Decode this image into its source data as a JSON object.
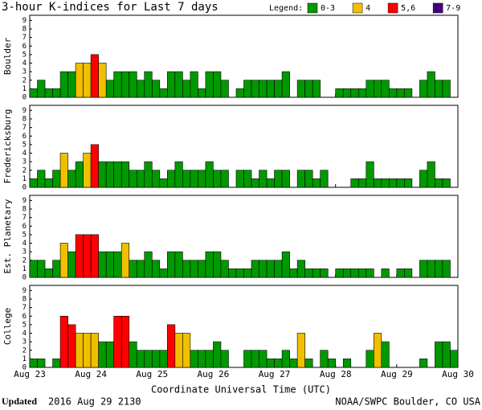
{
  "title": "3-hour K-indices for Last 7 days",
  "legend": {
    "title": "Legend:",
    "items": [
      {
        "label": "0-3",
        "color": "#009900"
      },
      {
        "label": "4",
        "color": "#f0c000"
      },
      {
        "label": "5,6",
        "color": "#ff0000"
      },
      {
        "label": "7-9",
        "color": "#400080"
      }
    ]
  },
  "x_label": "Coordinate Universal Time (UTC)",
  "footer": {
    "updated": "Updated",
    "time": "2016 Aug 29 2130",
    "source": "NOAA/SWPC Boulder, CO USA"
  },
  "chart_data": [
    {
      "type": "bar",
      "y_label": "Boulder",
      "xlim": [
        0,
        7
      ],
      "ylim": [
        0,
        9.6
      ],
      "yticks": [
        0,
        1,
        2,
        3,
        4,
        5,
        6,
        7,
        8,
        9
      ],
      "values": [
        1,
        2,
        1,
        1,
        3,
        3,
        4,
        4,
        5,
        4,
        2,
        3,
        3,
        3,
        2,
        3,
        2,
        1,
        3,
        3,
        2,
        3,
        1,
        3,
        3,
        2,
        0,
        1,
        2,
        2,
        2,
        2,
        2,
        3,
        0,
        2,
        2,
        2,
        0,
        0,
        1,
        1,
        1,
        1,
        2,
        2,
        2,
        1,
        1,
        1,
        0,
        2,
        3,
        2,
        2,
        0
      ]
    },
    {
      "type": "bar",
      "y_label": "Fredericksburg",
      "xlim": [
        0,
        7
      ],
      "ylim": [
        0,
        9.6
      ],
      "yticks": [
        0,
        1,
        2,
        3,
        4,
        5,
        6,
        7,
        8,
        9
      ],
      "values": [
        1,
        2,
        1,
        2,
        4,
        2,
        3,
        4,
        5,
        3,
        3,
        3,
        3,
        2,
        2,
        3,
        2,
        1,
        2,
        3,
        2,
        2,
        2,
        3,
        2,
        2,
        0,
        2,
        2,
        1,
        2,
        1,
        2,
        2,
        0,
        2,
        2,
        1,
        2,
        0,
        0,
        0,
        1,
        1,
        3,
        1,
        1,
        1,
        1,
        1,
        0,
        2,
        3,
        1,
        1,
        0
      ]
    },
    {
      "type": "bar",
      "y_label": "Est. Planetary",
      "xlim": [
        0,
        7
      ],
      "ylim": [
        0,
        9.6
      ],
      "yticks": [
        0,
        1,
        2,
        3,
        4,
        5,
        6,
        7,
        8,
        9
      ],
      "values": [
        2,
        2,
        1,
        2,
        4,
        3,
        5,
        5,
        5,
        3,
        3,
        3,
        4,
        2,
        2,
        3,
        2,
        1,
        3,
        3,
        2,
        2,
        2,
        3,
        3,
        2,
        1,
        1,
        1,
        2,
        2,
        2,
        2,
        3,
        1,
        2,
        1,
        1,
        1,
        0,
        1,
        1,
        1,
        1,
        1,
        0,
        1,
        0,
        1,
        1,
        0,
        2,
        2,
        2,
        2,
        0
      ]
    },
    {
      "type": "bar",
      "y_label": "College",
      "xlim": [
        0,
        7
      ],
      "ylim": [
        0,
        9.6
      ],
      "yticks": [
        0,
        1,
        2,
        3,
        4,
        5,
        6,
        7,
        8,
        9
      ],
      "xticks": [
        {
          "value": 0,
          "label": "Aug 23"
        },
        {
          "value": 1,
          "label": "Aug 24"
        },
        {
          "value": 2,
          "label": "Aug 25"
        },
        {
          "value": 3,
          "label": "Aug 26"
        },
        {
          "value": 4,
          "label": "Aug 27"
        },
        {
          "value": 5,
          "label": "Aug 28"
        },
        {
          "value": 6,
          "label": "Aug 29"
        },
        {
          "value": 7,
          "label": "Aug 30"
        }
      ],
      "values": [
        1,
        1,
        0,
        1,
        6,
        5,
        4,
        4,
        4,
        3,
        3,
        6,
        6,
        3,
        2,
        2,
        2,
        2,
        5,
        4,
        4,
        2,
        2,
        2,
        3,
        2,
        0,
        0,
        2,
        2,
        2,
        1,
        1,
        2,
        1,
        4,
        1,
        0,
        2,
        1,
        0,
        1,
        0,
        0,
        2,
        4,
        3,
        0,
        0,
        0,
        0,
        1,
        0,
        3,
        3,
        2
      ]
    }
  ]
}
